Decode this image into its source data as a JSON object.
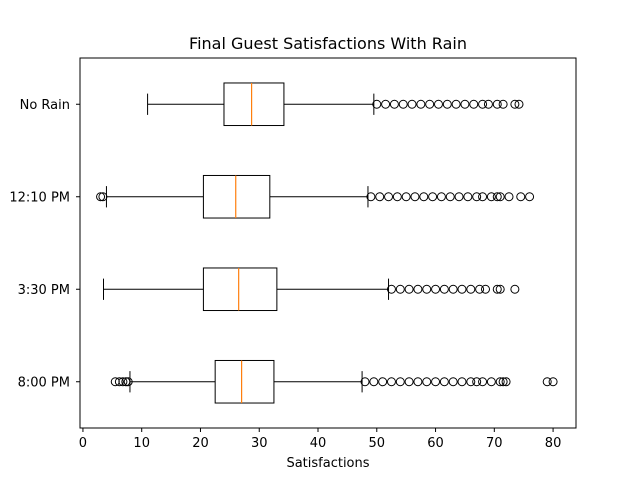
{
  "chart_data": {
    "type": "boxplot",
    "orientation": "horizontal",
    "title": "Final Guest Satisfactions With Rain",
    "xlabel": "Satisfactions",
    "ylabel": "",
    "xlim": [
      -0.5,
      83.9
    ],
    "xticks": [
      0,
      10,
      20,
      30,
      40,
      50,
      60,
      70,
      80
    ],
    "grid": false,
    "colors": {
      "box": "#000000",
      "median": "#ff7f0e"
    },
    "categories": [
      "No Rain",
      "12:10 PM",
      "3:30 PM",
      "8:00 PM"
    ],
    "boxes": [
      {
        "label": "No Rain",
        "whisker_low": 11.0,
        "q1": 24.0,
        "median": 28.7,
        "q3": 34.2,
        "whisker_high": 49.5,
        "fliers_low": [],
        "fliers_high": [
          50.0,
          51.5,
          53.0,
          54.5,
          56.0,
          57.5,
          59.0,
          60.5,
          62.0,
          63.5,
          65.0,
          66.5,
          68.0,
          69.0,
          70.5,
          71.5,
          73.5,
          74.2
        ]
      },
      {
        "label": "12:10 PM",
        "whisker_low": 4.0,
        "q1": 20.5,
        "median": 26.0,
        "q3": 31.8,
        "whisker_high": 48.5,
        "fliers_low": [
          3.0,
          3.4
        ],
        "fliers_high": [
          49.0,
          50.5,
          52.0,
          53.5,
          55.0,
          56.5,
          58.0,
          59.5,
          61.0,
          62.5,
          64.0,
          65.5,
          67.0,
          68.0,
          69.5,
          70.5,
          71.0,
          72.5,
          74.5,
          76.0
        ]
      },
      {
        "label": "3:30 PM",
        "whisker_low": 3.5,
        "q1": 20.5,
        "median": 26.5,
        "q3": 33.0,
        "whisker_high": 52.0,
        "fliers_low": [],
        "fliers_high": [
          52.5,
          54.0,
          55.5,
          57.0,
          58.5,
          60.0,
          61.5,
          63.0,
          64.5,
          66.0,
          67.5,
          68.5,
          70.5,
          71.0,
          73.5
        ]
      },
      {
        "label": "8:00 PM",
        "whisker_low": 8.0,
        "q1": 22.5,
        "median": 27.0,
        "q3": 32.5,
        "whisker_high": 47.5,
        "fliers_low": [
          5.5,
          6.2,
          6.8,
          7.3,
          7.7
        ],
        "fliers_high": [
          48.0,
          49.5,
          51.0,
          52.5,
          54.0,
          55.5,
          57.0,
          58.5,
          60.0,
          61.5,
          63.0,
          64.5,
          66.0,
          67.0,
          68.0,
          69.5,
          71.0,
          71.5,
          72.0,
          79.0,
          80.0
        ]
      }
    ]
  }
}
